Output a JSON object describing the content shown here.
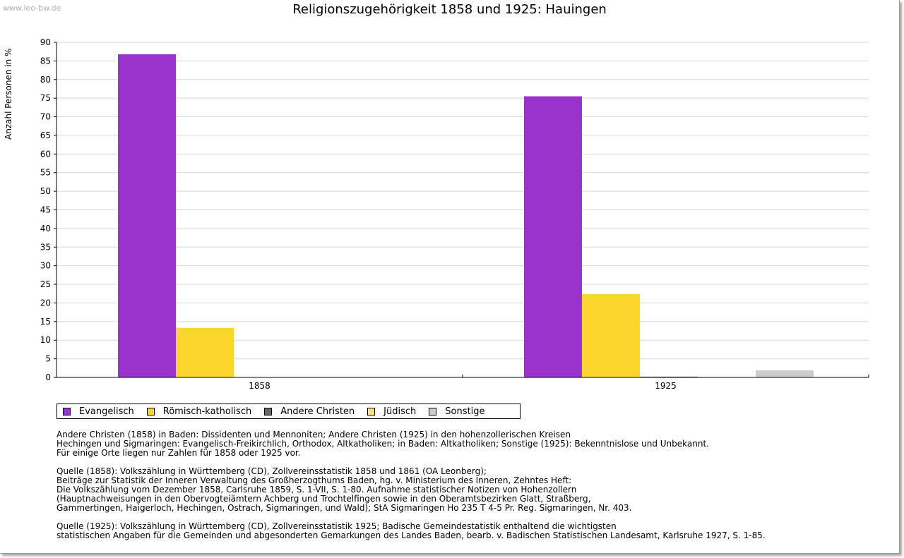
{
  "watermark": "www.leo-bw.de",
  "chart_data": {
    "type": "bar",
    "title": "Religionszugehörigkeit 1858 und 1925: Hauingen",
    "ylabel": "Anzahl Personen in %",
    "xlabel": "",
    "ylim": [
      0,
      90
    ],
    "yticks": [
      "0",
      "5",
      "10",
      "15",
      "20",
      "25",
      "30",
      "35",
      "40",
      "45",
      "50",
      "55",
      "60",
      "65",
      "70",
      "75",
      "80",
      "85",
      "90"
    ],
    "categories": [
      "1858",
      "1925"
    ],
    "series": [
      {
        "name": "Evangelisch",
        "color": "#9933cc",
        "values": [
          86.8,
          75.5
        ]
      },
      {
        "name": "Römisch-katholisch",
        "color": "#fcd62c",
        "values": [
          13.3,
          22.4
        ]
      },
      {
        "name": "Andere Christen",
        "color": "#666666",
        "values": [
          0,
          0.2
        ]
      },
      {
        "name": "Jüdisch",
        "color": "#fde276",
        "values": [
          0,
          0
        ]
      },
      {
        "name": "Sonstige",
        "color": "#cccccc",
        "values": [
          0,
          1.9
        ]
      }
    ],
    "grid": true,
    "legend_position": "bottom-left"
  },
  "notes": [
    "Andere Christen (1858) in Baden: Dissidenten und Mennoniten; Andere Christen (1925) in den hohenzollerischen Kreisen\nHechingen und Sigmaringen: Evangelisch-Freikirchlich, Orthodox, Altkatholiken; in Baden: Altkatholiken; Sonstige (1925): Bekenntnislose und Unbekannt.\nFür einige Orte liegen nur Zahlen für 1858 oder 1925 vor.",
    "Quelle (1858): Volkszählung in Württemberg (CD), Zollvereinsstatistik 1858 und 1861 (OA Leonberg);\nBeiträge zur Statistik der Inneren Verwaltung des Großherzogthums Baden, hg. v. Ministerium des Inneren, Zehntes Heft:\nDie Volkszählung vom Dezember 1858, Carlsruhe 1859, S. 1-VII, S. 1-80. Aufnahme statistischer Notizen von Hohenzollern\n(Hauptnachweisungen in den Obervogteiämtern Achberg und Trochtelfingen sowie in den Oberamtsbezirken Glatt, Straßberg,\nGammertingen, Haigerloch, Hechingen, Ostrach, Sigmaringen, und Wald); StA Sigmaringen Ho 235 T 4-5 Pr. Reg. Sigmaringen, Nr. 403.",
    "Quelle (1925): Volkszählung in Württemberg (CD), Zollvereinsstatistik 1925; Badische Gemeindestatistik enthaltend die wichtigsten\nstatistischen Angaben für die Gemeinden und abgesonderten Gemarkungen des Landes Baden, bearb. v. Badischen Statistischen Landesamt, Karlsruhe 1927, S. 1-85."
  ]
}
